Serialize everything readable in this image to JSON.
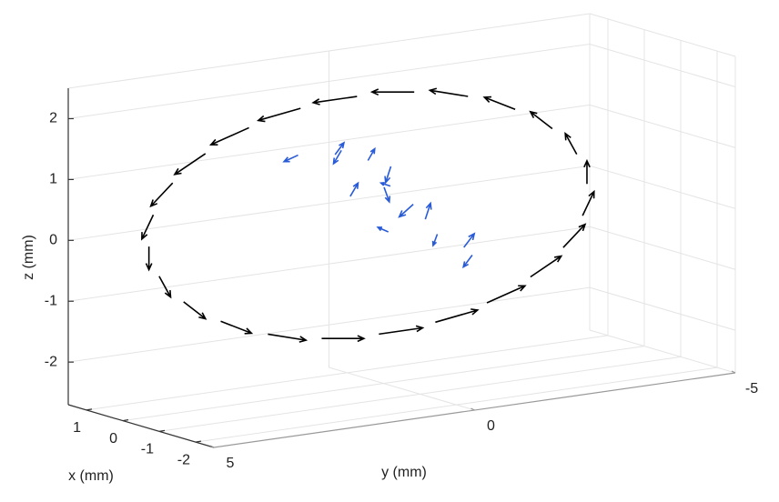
{
  "chart_data": {
    "type": "quiver3d",
    "xlabel": "x (mm)",
    "ylabel": "y (mm)",
    "zlabel": "z (mm)",
    "xlim": [
      -2.5,
      1.5
    ],
    "ylim": [
      -5,
      5
    ],
    "zlim": [
      -2.7,
      2.5
    ],
    "xticks": [
      -2,
      -1,
      0,
      1
    ],
    "yticks": [
      -5,
      0,
      5
    ],
    "zticks": [
      -2,
      -1,
      0,
      1,
      2
    ],
    "grid": true,
    "series": [
      {
        "color": "#000000",
        "x": [
          0,
          0.08,
          0.15,
          0.21,
          0.26,
          0.29,
          0.3,
          0.29,
          0.26,
          0.21,
          0.15,
          0.08,
          0,
          -0.08,
          -0.15,
          -0.21,
          -0.26,
          -0.29,
          -0.3,
          -0.29,
          -0.26,
          -0.21,
          -0.15,
          -0.08
        ],
        "y": [
          4.5,
          4.36,
          3.94,
          3.27,
          2.4,
          1.39,
          0.3,
          -0.79,
          -1.8,
          -2.67,
          -3.34,
          -3.76,
          -3.9,
          -3.76,
          -3.34,
          -2.67,
          -1.8,
          -0.79,
          0.3,
          1.39,
          2.4,
          3.27,
          3.94,
          4.36
        ],
        "z": [
          0.1,
          0.59,
          1.05,
          1.44,
          1.75,
          1.94,
          2.0,
          1.94,
          1.75,
          1.44,
          1.05,
          0.59,
          0.1,
          -0.39,
          -0.85,
          -1.24,
          -1.55,
          -1.74,
          -1.8,
          -1.74,
          -1.55,
          -1.24,
          -0.85,
          -0.39
        ],
        "u": [
          0,
          0,
          0,
          0,
          0,
          0,
          0,
          0,
          0,
          0,
          0,
          0,
          0,
          0,
          0,
          0,
          0,
          0,
          0,
          0,
          0,
          0,
          0,
          0
        ],
        "v": [
          0,
          0.22,
          0.42,
          0.59,
          0.73,
          0.81,
          0.84,
          0.81,
          0.73,
          0.59,
          0.42,
          0.22,
          0,
          -0.22,
          -0.42,
          -0.59,
          -0.73,
          -0.81,
          -0.84,
          -0.81,
          -0.73,
          -0.59,
          -0.42,
          -0.22
        ],
        "w": [
          -0.38,
          -0.37,
          -0.33,
          -0.27,
          -0.19,
          -0.1,
          0,
          0.1,
          0.19,
          0.27,
          0.33,
          0.37,
          0.38,
          0.37,
          0.33,
          0.27,
          0.19,
          0.1,
          0,
          -0.1,
          -0.19,
          -0.27,
          -0.33,
          -0.37
        ]
      },
      {
        "color": "#2a5bd7",
        "x": [
          0.2,
          -0.1,
          0.3,
          0,
          -0.2,
          0.1,
          0.2,
          -0.1,
          0,
          0.1,
          -0.2,
          0,
          0.3,
          -0.3
        ],
        "y": [
          1.5,
          1.0,
          0.6,
          0.3,
          0.0,
          -0.2,
          0.5,
          -0.5,
          -0.8,
          -1.1,
          -1.4,
          -1.7,
          -0.3,
          0.2
        ],
        "z": [
          1.2,
          1.2,
          1.15,
          1.0,
          0.9,
          0.5,
          0.4,
          0.2,
          -0.1,
          -0.4,
          -0.6,
          -0.8,
          -0.3,
          0.6
        ],
        "u": [
          0.1,
          -0.1,
          0,
          0.1,
          0,
          -0.1,
          0,
          0.1,
          0,
          -0.1,
          0,
          0.1,
          0,
          0
        ],
        "v": [
          0.2,
          -0.1,
          0.15,
          -0.2,
          0.1,
          0.25,
          -0.15,
          0.2,
          -0.1,
          0.15,
          -0.2,
          0.1,
          0.2,
          -0.1
        ],
        "w": [
          -0.1,
          0.2,
          -0.2,
          0.15,
          -0.25,
          0.1,
          0.2,
          -0.2,
          0.25,
          -0.15,
          0.2,
          -0.2,
          0.1,
          -0.25
        ]
      }
    ]
  }
}
